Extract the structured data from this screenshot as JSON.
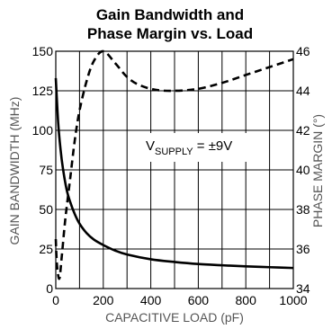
{
  "chart_data": {
    "type": "line",
    "title_lines": [
      "Gain Bandwidth and",
      "Phase Margin vs. Load"
    ],
    "xlabel": "CAPACITIVE LOAD (pF)",
    "ylabel_left": "GAIN BANDWIDTH (MHz)",
    "ylabel_right": "PHASE MARGIN (°)",
    "xlim": [
      0,
      1000
    ],
    "ylim_left": [
      0,
      150
    ],
    "ylim_right": [
      34,
      46
    ],
    "x_ticks": [
      "0",
      "200",
      "400",
      "600",
      "800",
      "1000"
    ],
    "y_ticks_left": [
      "0",
      "25",
      "50",
      "75",
      "100",
      "125",
      "150"
    ],
    "y_ticks_right": [
      "34",
      "36",
      "38",
      "40",
      "42",
      "44",
      "46"
    ],
    "grid": true,
    "annotation": {
      "prefix": "V",
      "subscript": "SUPPLY",
      "suffix": " = ±9V"
    },
    "series": [
      {
        "axis": "left",
        "style": "solid",
        "points": [
          [
            0,
            133
          ],
          [
            10,
            105
          ],
          [
            20,
            88
          ],
          [
            30,
            76
          ],
          [
            45,
            63
          ],
          [
            60,
            55
          ],
          [
            80,
            47
          ],
          [
            100,
            41
          ],
          [
            130,
            35
          ],
          [
            160,
            31
          ],
          [
            200,
            27.5
          ],
          [
            250,
            24
          ],
          [
            300,
            21.5
          ],
          [
            400,
            18.5
          ],
          [
            500,
            16.8
          ],
          [
            600,
            15.5
          ],
          [
            700,
            14.7
          ],
          [
            800,
            14
          ],
          [
            900,
            13.5
          ],
          [
            1000,
            13
          ]
        ]
      },
      {
        "axis": "right",
        "style": "dashed",
        "points": [
          [
            0,
            36.5
          ],
          [
            5,
            35.2
          ],
          [
            15,
            34.5
          ],
          [
            25,
            35.6
          ],
          [
            40,
            37.5
          ],
          [
            60,
            39.5
          ],
          [
            80,
            41.5
          ],
          [
            100,
            43
          ],
          [
            130,
            44.5
          ],
          [
            160,
            45.5
          ],
          [
            200,
            46
          ],
          [
            250,
            45.4
          ],
          [
            300,
            44.7
          ],
          [
            350,
            44.3
          ],
          [
            420,
            44.05
          ],
          [
            500,
            44
          ],
          [
            600,
            44.1
          ],
          [
            700,
            44.4
          ],
          [
            800,
            44.8
          ],
          [
            900,
            45.2
          ],
          [
            1000,
            45.6
          ]
        ]
      }
    ]
  }
}
